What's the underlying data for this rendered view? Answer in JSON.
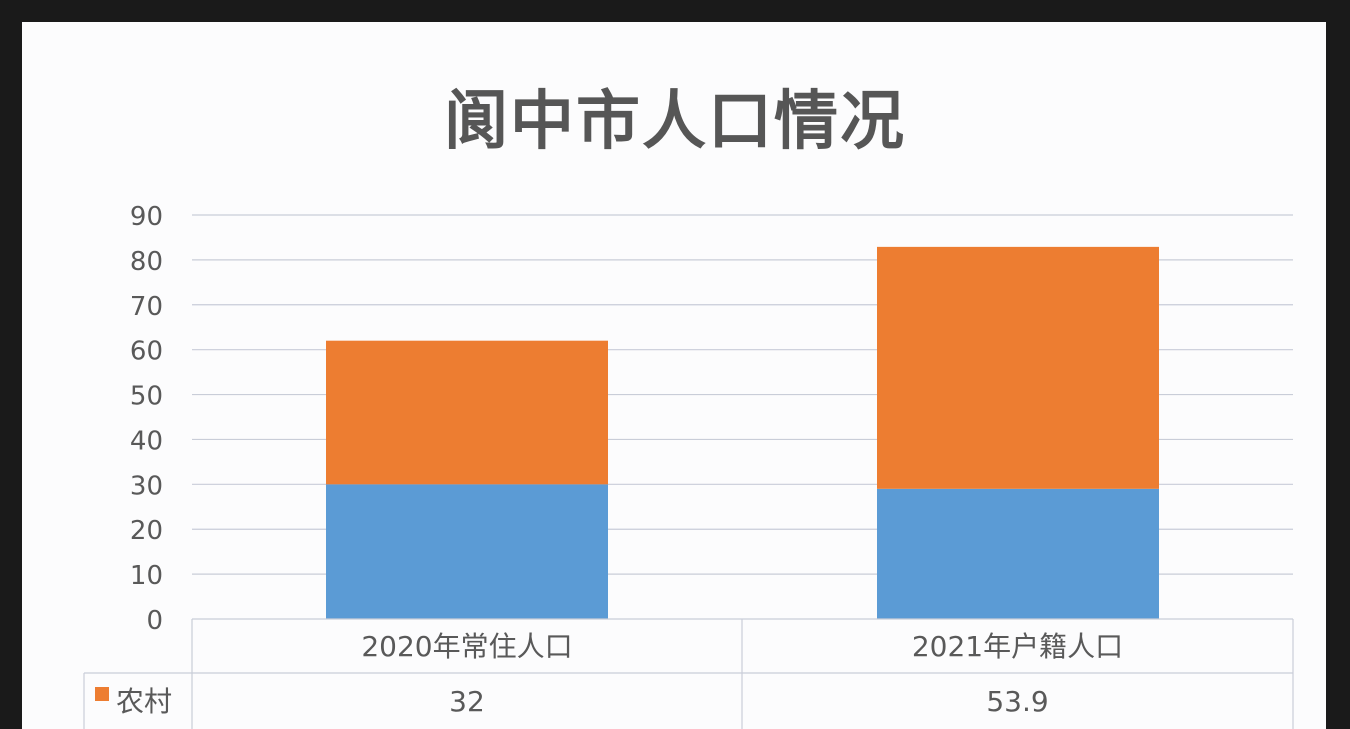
{
  "chart_data": {
    "type": "bar",
    "stacked": true,
    "title": "阆中市人口情况",
    "categories": [
      "2020年常住人口",
      "2021年户籍人口"
    ],
    "series": [
      {
        "name": "",
        "color": "#5b9bd5",
        "values": [
          30,
          29
        ]
      },
      {
        "name": "农村",
        "color": "#ed7d31",
        "values": [
          32,
          53.9
        ]
      }
    ],
    "table_row": {
      "label": "农村",
      "values": [
        "32",
        "53.9"
      ]
    },
    "yticks": [
      "0",
      "10",
      "20",
      "30",
      "40",
      "50",
      "60",
      "70",
      "80",
      "90"
    ],
    "ylim": [
      0,
      90
    ],
    "grid": true
  }
}
